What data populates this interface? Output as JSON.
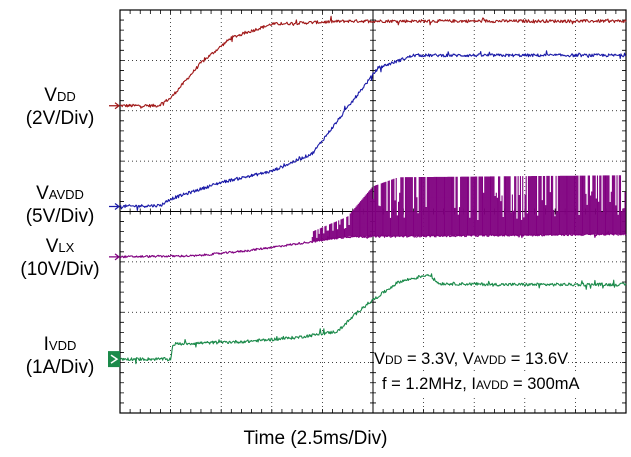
{
  "chart_data": {
    "type": "line",
    "title": "",
    "xlabel": "Time (2.5ms/Div)",
    "ylabel": "",
    "grid": true,
    "x_divisions": 10,
    "y_divisions": 8,
    "xlim": [
      0,
      10
    ],
    "ylim": [
      0,
      8
    ],
    "series": [
      {
        "name": "VDD",
        "label_main": "V",
        "label_sub": "DD",
        "label_scale": "(2V/Div)",
        "color": "#a01818",
        "noise": 0.03,
        "ref_level": 6.1,
        "x": [
          0,
          0.75,
          1.0,
          1.6,
          2.2,
          3.0,
          4.5,
          10
        ],
        "y": [
          6.1,
          6.1,
          6.25,
          6.95,
          7.45,
          7.72,
          7.78,
          7.78
        ]
      },
      {
        "name": "VAVDD",
        "label_main": "V",
        "label_sub": "AVDD",
        "label_scale": "(5V/Div)",
        "color": "#1a1aa8",
        "noise": 0.03,
        "ref_level": 4.1,
        "x": [
          0,
          0.8,
          1.0,
          2.0,
          3.0,
          3.8,
          4.3,
          5.1,
          5.8,
          6.5,
          10
        ],
        "y": [
          4.1,
          4.12,
          4.25,
          4.58,
          4.8,
          5.15,
          5.8,
          6.85,
          7.1,
          7.1,
          7.1
        ]
      },
      {
        "name": "VLX",
        "label_main": "V",
        "label_sub": "LX",
        "label_scale": "(10V/Div)",
        "color": "#800080",
        "noise": 0.02,
        "ref_level": 3.1,
        "x": [
          0,
          1.5,
          2.5,
          4.5,
          10
        ],
        "y": [
          3.1,
          3.12,
          3.22,
          3.5,
          3.55
        ],
        "switching_start": 3.8,
        "switching_high": [
          [
            3.8,
            3.6
          ],
          [
            4.5,
            3.9
          ],
          [
            5.0,
            4.5
          ],
          [
            5.5,
            4.68
          ],
          [
            10,
            4.72
          ]
        ]
      },
      {
        "name": "IVDD",
        "label_main": "I",
        "label_sub": "VDD",
        "label_scale": "(1A/Div)",
        "color": "#1b8a4a",
        "noise": 0.03,
        "ref_level": 1.07,
        "x": [
          0,
          1.0,
          1.05,
          2.5,
          3.5,
          4.3,
          4.8,
          5.5,
          6.1,
          6.3,
          7.5,
          10
        ],
        "y": [
          1.07,
          1.07,
          1.37,
          1.42,
          1.5,
          1.62,
          2.1,
          2.6,
          2.75,
          2.57,
          2.55,
          2.55
        ]
      }
    ],
    "annotations": [
      {
        "parts": [
          [
            "V",
            "main"
          ],
          [
            "DD",
            "sub"
          ],
          [
            " = 3.3V, V",
            "main"
          ],
          [
            "AVDD",
            "sub"
          ],
          [
            " = 13.6V",
            "main"
          ]
        ]
      },
      {
        "parts": [
          [
            "f = 1.2MHz, I",
            "main"
          ],
          [
            "AVDD",
            "sub"
          ],
          [
            " = 300mA",
            "main"
          ]
        ]
      }
    ]
  }
}
